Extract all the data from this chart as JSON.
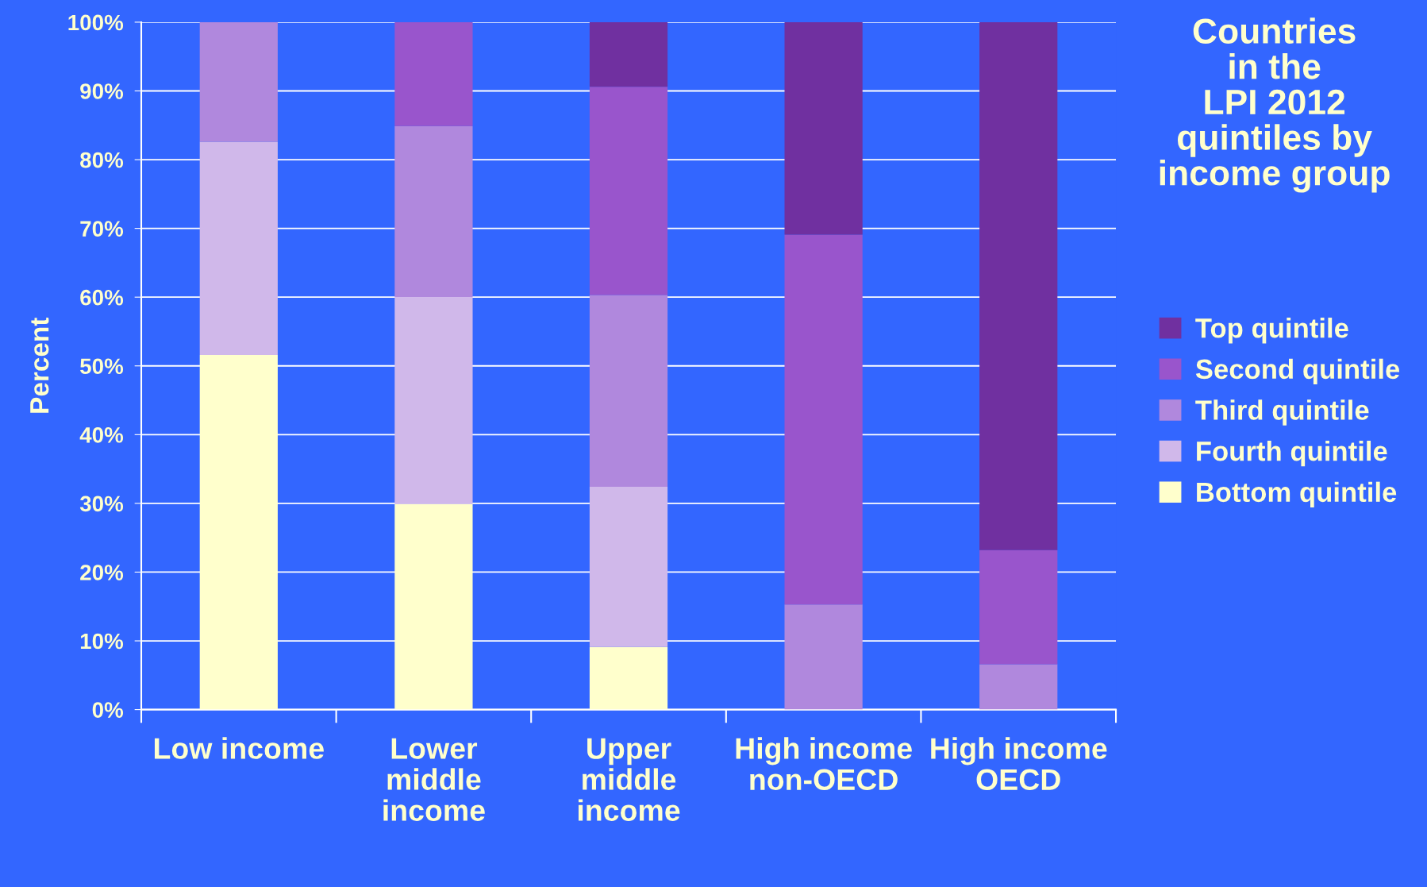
{
  "chart_data": {
    "type": "bar",
    "stacked": true,
    "title": "Countries\nin the\nLPI 2012\nquintiles by\nincome group",
    "ylabel": "Percent",
    "categories": [
      "Low income",
      "Lower\nmiddle\nincome",
      "Upper\nmiddle\nincome",
      "High income\nnon-OECD",
      "High income\nOECD"
    ],
    "series": [
      {
        "name": "Bottom quintile",
        "color": "#ffffcc",
        "values": [
          51.6,
          29.9,
          9.1,
          0,
          0
        ]
      },
      {
        "name": "Fourth quintile",
        "color": "#d0b8ea",
        "values": [
          31.0,
          30.1,
          23.3,
          0,
          0
        ]
      },
      {
        "name": "Third quintile",
        "color": "#b088dd",
        "values": [
          17.4,
          24.9,
          27.9,
          15.3,
          6.6
        ]
      },
      {
        "name": "Second quintile",
        "color": "#9955cc",
        "values": [
          0,
          15.1,
          30.3,
          53.8,
          16.6
        ]
      },
      {
        "name": "Top quintile",
        "color": "#7030a0",
        "values": [
          0,
          0,
          9.4,
          30.9,
          76.8
        ]
      }
    ],
    "ylim": [
      0,
      100
    ],
    "yticks": [
      {
        "value": 0,
        "label": "0%"
      },
      {
        "value": 10,
        "label": "10%"
      },
      {
        "value": 20,
        "label": "20%"
      },
      {
        "value": 30,
        "label": "30%"
      },
      {
        "value": 40,
        "label": "40%"
      },
      {
        "value": 50,
        "label": "50%"
      },
      {
        "value": 60,
        "label": "60%"
      },
      {
        "value": 70,
        "label": "70%"
      },
      {
        "value": 80,
        "label": "80%"
      },
      {
        "value": 90,
        "label": "90%"
      },
      {
        "value": 100,
        "label": "100%"
      }
    ],
    "grid": "y",
    "legend": "right"
  }
}
